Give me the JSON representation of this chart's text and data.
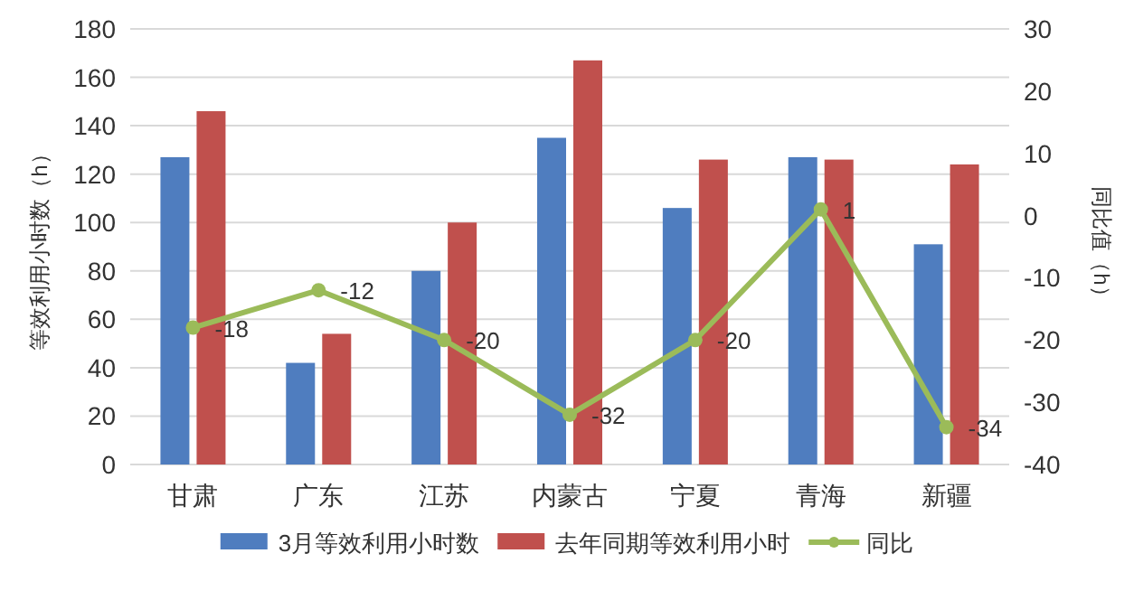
{
  "chart_data": {
    "type": "bar",
    "categories": [
      "甘肃",
      "广东",
      "江苏",
      "内蒙古",
      "宁夏",
      "青海",
      "新疆"
    ],
    "series": [
      {
        "name": "3月等效利用小时数",
        "color": "#4f7dbf",
        "values": [
          127,
          42,
          80,
          135,
          106,
          127,
          91
        ]
      },
      {
        "name": "去年同期等效利用小时",
        "color": "#c0504d",
        "values": [
          146,
          54,
          100,
          167,
          126,
          126,
          124
        ]
      },
      {
        "name": "同比",
        "type": "line",
        "axis": "y2",
        "color": "#9bbb59",
        "marker": "circle",
        "values": [
          -18,
          -12,
          -20,
          -32,
          -20,
          1,
          -34
        ],
        "value_labels": [
          "-18",
          "-12",
          "-20",
          "-32",
          "-20",
          "1",
          "-34"
        ]
      }
    ],
    "ylabel": "等效利用小时数（h）",
    "y2label": "同比值（h）",
    "ylim": [
      0,
      180
    ],
    "yticks": [
      0,
      20,
      40,
      60,
      80,
      100,
      120,
      140,
      160,
      180
    ],
    "y2lim": [
      -40,
      30
    ],
    "y2ticks": [
      -40,
      -30,
      -20,
      -10,
      0,
      10,
      20,
      30
    ],
    "grid": "y",
    "legend": "bottom"
  }
}
